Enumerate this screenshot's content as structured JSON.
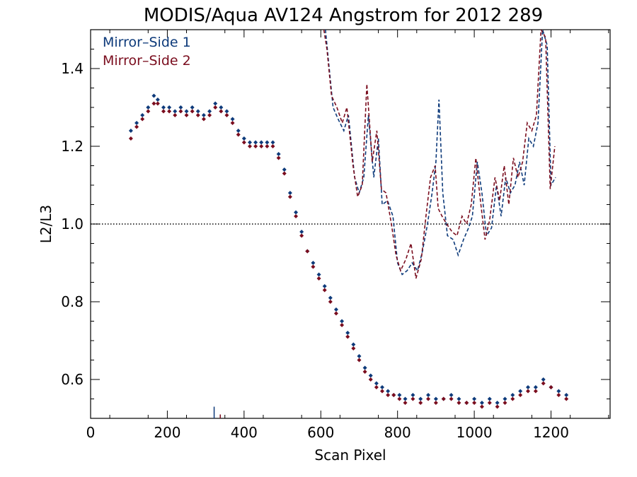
{
  "chart_data": {
    "type": "scatter",
    "title": "MODIS/Aqua AV124 Angstrom for 2012 289",
    "xlabel": "Scan Pixel",
    "ylabel": "L2/L3",
    "xlim": [
      0,
      1354
    ],
    "ylim": [
      0.5,
      1.5
    ],
    "x_ticks": [
      0,
      200,
      400,
      600,
      800,
      1000,
      1200
    ],
    "x_tick_labels": [
      "0",
      "200",
      "400",
      "600",
      "800",
      "1000",
      "1200"
    ],
    "y_ticks": [
      0.6,
      0.8,
      1.0,
      1.2,
      1.4
    ],
    "y_tick_labels": [
      "0.6",
      "0.8",
      "1.0",
      "1.2",
      "1.4"
    ],
    "reference_line": 1.0,
    "legend_position": "top-left",
    "series": [
      {
        "name": "Mirror–Side 1",
        "color": "#0d3a7a",
        "points": [
          [
            105,
            1.24
          ],
          [
            120,
            1.26
          ],
          [
            135,
            1.28
          ],
          [
            150,
            1.3
          ],
          [
            165,
            1.33
          ],
          [
            175,
            1.32
          ],
          [
            190,
            1.3
          ],
          [
            205,
            1.3
          ],
          [
            220,
            1.29
          ],
          [
            235,
            1.3
          ],
          [
            250,
            1.29
          ],
          [
            265,
            1.3
          ],
          [
            280,
            1.29
          ],
          [
            295,
            1.28
          ],
          [
            310,
            1.29
          ],
          [
            325,
            1.31
          ],
          [
            340,
            1.3
          ],
          [
            355,
            1.29
          ],
          [
            370,
            1.27
          ],
          [
            385,
            1.24
          ],
          [
            400,
            1.22
          ],
          [
            415,
            1.21
          ],
          [
            430,
            1.21
          ],
          [
            445,
            1.21
          ],
          [
            460,
            1.21
          ],
          [
            475,
            1.21
          ],
          [
            490,
            1.18
          ],
          [
            505,
            1.14
          ],
          [
            520,
            1.08
          ],
          [
            535,
            1.03
          ],
          [
            550,
            0.98
          ],
          [
            565,
            0.93
          ],
          [
            580,
            0.9
          ],
          [
            595,
            0.87
          ],
          [
            610,
            0.84
          ],
          [
            625,
            0.81
          ],
          [
            640,
            0.78
          ],
          [
            655,
            0.75
          ],
          [
            670,
            0.72
          ],
          [
            685,
            0.69
          ],
          [
            700,
            0.66
          ],
          [
            715,
            0.63
          ],
          [
            730,
            0.61
          ],
          [
            745,
            0.59
          ],
          [
            760,
            0.58
          ],
          [
            775,
            0.57
          ],
          [
            790,
            0.56
          ],
          [
            805,
            0.56
          ],
          [
            820,
            0.55
          ],
          [
            840,
            0.56
          ],
          [
            860,
            0.55
          ],
          [
            880,
            0.56
          ],
          [
            900,
            0.55
          ],
          [
            920,
            0.55
          ],
          [
            940,
            0.56
          ],
          [
            960,
            0.55
          ],
          [
            980,
            0.54
          ],
          [
            1000,
            0.55
          ],
          [
            1020,
            0.54
          ],
          [
            1040,
            0.55
          ],
          [
            1060,
            0.54
          ],
          [
            1080,
            0.55
          ],
          [
            1100,
            0.56
          ],
          [
            1120,
            0.57
          ],
          [
            1140,
            0.58
          ],
          [
            1160,
            0.58
          ],
          [
            1180,
            0.6
          ],
          [
            1200,
            0.58
          ],
          [
            1220,
            0.57
          ],
          [
            1240,
            0.56
          ]
        ]
      },
      {
        "name": "Mirror–Side 2",
        "color": "#7a0d1e",
        "points": [
          [
            105,
            1.22
          ],
          [
            120,
            1.25
          ],
          [
            135,
            1.27
          ],
          [
            150,
            1.29
          ],
          [
            165,
            1.31
          ],
          [
            175,
            1.31
          ],
          [
            190,
            1.29
          ],
          [
            205,
            1.29
          ],
          [
            220,
            1.28
          ],
          [
            235,
            1.29
          ],
          [
            250,
            1.28
          ],
          [
            265,
            1.29
          ],
          [
            280,
            1.28
          ],
          [
            295,
            1.27
          ],
          [
            310,
            1.28
          ],
          [
            325,
            1.3
          ],
          [
            340,
            1.29
          ],
          [
            355,
            1.28
          ],
          [
            370,
            1.26
          ],
          [
            385,
            1.23
          ],
          [
            400,
            1.21
          ],
          [
            415,
            1.2
          ],
          [
            430,
            1.2
          ],
          [
            445,
            1.2
          ],
          [
            460,
            1.2
          ],
          [
            475,
            1.2
          ],
          [
            490,
            1.17
          ],
          [
            505,
            1.13
          ],
          [
            520,
            1.07
          ],
          [
            535,
            1.02
          ],
          [
            550,
            0.97
          ],
          [
            565,
            0.93
          ],
          [
            580,
            0.89
          ],
          [
            595,
            0.86
          ],
          [
            610,
            0.83
          ],
          [
            625,
            0.8
          ],
          [
            640,
            0.77
          ],
          [
            655,
            0.74
          ],
          [
            670,
            0.71
          ],
          [
            685,
            0.68
          ],
          [
            700,
            0.65
          ],
          [
            715,
            0.62
          ],
          [
            730,
            0.6
          ],
          [
            745,
            0.58
          ],
          [
            760,
            0.57
          ],
          [
            775,
            0.56
          ],
          [
            790,
            0.56
          ],
          [
            805,
            0.55
          ],
          [
            820,
            0.54
          ],
          [
            840,
            0.55
          ],
          [
            860,
            0.54
          ],
          [
            880,
            0.55
          ],
          [
            900,
            0.54
          ],
          [
            920,
            0.55
          ],
          [
            940,
            0.55
          ],
          [
            960,
            0.54
          ],
          [
            980,
            0.54
          ],
          [
            1000,
            0.54
          ],
          [
            1020,
            0.53
          ],
          [
            1040,
            0.54
          ],
          [
            1060,
            0.53
          ],
          [
            1080,
            0.54
          ],
          [
            1100,
            0.55
          ],
          [
            1120,
            0.56
          ],
          [
            1140,
            0.57
          ],
          [
            1160,
            0.57
          ],
          [
            1180,
            0.59
          ],
          [
            1200,
            0.58
          ],
          [
            1220,
            0.56
          ],
          [
            1240,
            0.55
          ]
        ]
      }
    ],
    "dashed_series": [
      {
        "name": "Mirror–Side 1",
        "color": "#0d3a7a",
        "points": [
          [
            612,
            1.5
          ],
          [
            620,
            1.42
          ],
          [
            632,
            1.3
          ],
          [
            645,
            1.27
          ],
          [
            660,
            1.24
          ],
          [
            672,
            1.28
          ],
          [
            688,
            1.12
          ],
          [
            700,
            1.08
          ],
          [
            712,
            1.12
          ],
          [
            724,
            1.28
          ],
          [
            738,
            1.12
          ],
          [
            750,
            1.22
          ],
          [
            760,
            1.05
          ],
          [
            774,
            1.06
          ],
          [
            788,
            1.02
          ],
          [
            800,
            0.9
          ],
          [
            812,
            0.87
          ],
          [
            825,
            0.88
          ],
          [
            838,
            0.9
          ],
          [
            852,
            0.88
          ],
          [
            865,
            0.93
          ],
          [
            878,
            1.0
          ],
          [
            890,
            1.08
          ],
          [
            900,
            1.16
          ],
          [
            908,
            1.32
          ],
          [
            918,
            1.08
          ],
          [
            930,
            0.97
          ],
          [
            945,
            0.96
          ],
          [
            958,
            0.92
          ],
          [
            972,
            0.96
          ],
          [
            985,
            0.99
          ],
          [
            995,
            1.02
          ],
          [
            1008,
            1.16
          ],
          [
            1020,
            1.08
          ],
          [
            1032,
            0.97
          ],
          [
            1045,
            0.99
          ],
          [
            1058,
            1.1
          ],
          [
            1070,
            1.02
          ],
          [
            1082,
            1.12
          ],
          [
            1094,
            1.08
          ],
          [
            1106,
            1.1
          ],
          [
            1118,
            1.16
          ],
          [
            1130,
            1.1
          ],
          [
            1142,
            1.22
          ],
          [
            1154,
            1.2
          ],
          [
            1166,
            1.26
          ],
          [
            1178,
            1.5
          ],
          [
            1190,
            1.46
          ],
          [
            1200,
            1.1
          ],
          [
            1212,
            1.12
          ]
        ]
      },
      {
        "name": "Mirror–Side 2",
        "color": "#7a0d1e",
        "points": [
          [
            608,
            1.5
          ],
          [
            616,
            1.45
          ],
          [
            628,
            1.33
          ],
          [
            642,
            1.3
          ],
          [
            656,
            1.26
          ],
          [
            668,
            1.3
          ],
          [
            684,
            1.15
          ],
          [
            696,
            1.07
          ],
          [
            708,
            1.1
          ],
          [
            720,
            1.36
          ],
          [
            734,
            1.16
          ],
          [
            746,
            1.24
          ],
          [
            758,
            1.09
          ],
          [
            770,
            1.08
          ],
          [
            784,
            1.0
          ],
          [
            796,
            0.92
          ],
          [
            808,
            0.88
          ],
          [
            822,
            0.91
          ],
          [
            835,
            0.95
          ],
          [
            848,
            0.86
          ],
          [
            862,
            0.91
          ],
          [
            874,
            1.02
          ],
          [
            886,
            1.12
          ],
          [
            898,
            1.15
          ],
          [
            906,
            1.04
          ],
          [
            916,
            1.02
          ],
          [
            928,
            1.0
          ],
          [
            942,
            0.98
          ],
          [
            955,
            0.97
          ],
          [
            968,
            1.02
          ],
          [
            980,
            1.0
          ],
          [
            992,
            1.05
          ],
          [
            1004,
            1.17
          ],
          [
            1016,
            1.06
          ],
          [
            1028,
            0.96
          ],
          [
            1040,
            1.01
          ],
          [
            1054,
            1.12
          ],
          [
            1066,
            1.06
          ],
          [
            1078,
            1.15
          ],
          [
            1090,
            1.05
          ],
          [
            1102,
            1.17
          ],
          [
            1114,
            1.12
          ],
          [
            1126,
            1.16
          ],
          [
            1138,
            1.26
          ],
          [
            1150,
            1.24
          ],
          [
            1162,
            1.28
          ],
          [
            1174,
            1.5
          ],
          [
            1186,
            1.48
          ],
          [
            1198,
            1.09
          ],
          [
            1210,
            1.2
          ]
        ]
      }
    ],
    "spikes": [
      {
        "x": 322,
        "y_top": 0.53,
        "color": "#0d3a7a"
      },
      {
        "x": 338,
        "y_top": 0.51,
        "color": "#7a0d1e"
      }
    ]
  }
}
